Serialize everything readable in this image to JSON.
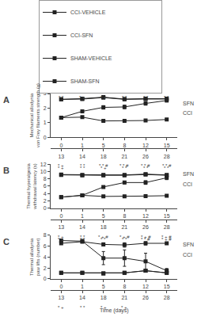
{
  "chart_data": [
    {
      "type": "line",
      "title": "A",
      "ylabel": "Mechanical allodynia\nvon Frey filaments strength (g)",
      "categories": [
        "0",
        "1",
        "5",
        "8",
        "12",
        "15"
      ],
      "categories_secondary": [
        "13",
        "14",
        "18",
        "21",
        "26",
        "28"
      ],
      "ylim": [
        0,
        3.0
      ],
      "yticks": [
        0,
        1,
        2,
        3
      ],
      "grid": false,
      "legend": "upper center",
      "series": [
        {
          "name": "CCI-VEHICLE",
          "color": "#222222",
          "marker": "square",
          "line_style": "solid",
          "values": [
            1.35,
            1.38,
            1.12,
            1.12,
            1.15,
            1.22
          ],
          "errors": [
            0.05,
            0.06,
            0.04,
            0.04,
            0.04,
            0.04
          ]
        },
        {
          "name": "CCI-SFN",
          "color": "#222222",
          "marker": "square",
          "line_style": "solid",
          "values": [
            1.35,
            1.78,
            2.05,
            2.08,
            2.32,
            2.52
          ],
          "errors": [
            0.05,
            0.1,
            0.12,
            0.12,
            0.12,
            0.1
          ]
        },
        {
          "name": "SHAM-VEHICLE",
          "color": "#222222",
          "marker": "square",
          "line_style": "solid",
          "values": [
            2.6,
            2.62,
            2.72,
            2.6,
            2.62,
            2.62
          ],
          "errors": [
            0.04,
            0.04,
            0.04,
            0.04,
            0.04,
            0.04
          ]
        },
        {
          "name": "SHAM-SFN",
          "color": "#222222",
          "marker": "square",
          "line_style": "solid",
          "values": [
            2.6,
            2.65,
            2.75,
            2.62,
            2.65,
            2.65
          ],
          "errors": [
            0.04,
            0.04,
            0.04,
            0.04,
            0.04,
            0.04
          ]
        }
      ],
      "annotations_top": [
        "* *",
        "* +",
        "* +",
        "* *",
        "* *",
        "* *"
      ],
      "annotations_bottom": [
        "* +",
        "* *",
        "* * #",
        "* * #",
        "* * #",
        "* * #"
      ],
      "side_labels": [
        "SFN",
        "CCI"
      ]
    },
    {
      "type": "line",
      "title": "B",
      "ylabel": "Thermal hyperalgesia\nwithdrawal latency (s)",
      "categories": [
        "0",
        "1",
        "5",
        "8",
        "12",
        "15"
      ],
      "categories_secondary": [
        "13",
        "14",
        "18",
        "21",
        "26",
        "28"
      ],
      "ylim": [
        0,
        12
      ],
      "yticks": [
        0,
        2,
        4,
        6,
        8,
        10,
        12
      ],
      "grid": false,
      "series": [
        {
          "name": "CCI-VEHICLE",
          "color": "#222222",
          "marker": "square",
          "line_style": "solid",
          "values": [
            3.0,
            3.5,
            3.2,
            3.2,
            3.3,
            3.4
          ],
          "errors": [
            0.1,
            0.1,
            0.1,
            0.1,
            0.1,
            0.1
          ]
        },
        {
          "name": "CCI-SFN",
          "color": "#222222",
          "marker": "square",
          "line_style": "solid",
          "values": [
            3.0,
            3.5,
            5.8,
            7.0,
            7.0,
            8.3
          ],
          "errors": [
            0.1,
            0.2,
            0.3,
            0.35,
            0.5,
            0.5
          ]
        },
        {
          "name": "SHAM-VEHICLE",
          "color": "#222222",
          "marker": "square",
          "line_style": "solid",
          "values": [
            9.1,
            9.0,
            9.0,
            9.0,
            9.2,
            9.0
          ],
          "errors": [
            0.08,
            0.08,
            0.08,
            0.08,
            0.08,
            0.08
          ]
        },
        {
          "name": "SHAM-SFN",
          "color": "#222222",
          "marker": "square",
          "line_style": "solid",
          "values": [
            9.2,
            9.1,
            9.1,
            9.1,
            9.3,
            9.1
          ],
          "errors": [
            0.08,
            0.08,
            0.08,
            0.08,
            0.08,
            0.08
          ]
        }
      ],
      "annotations_top": [
        "* +",
        "* *",
        "* +",
        "* *",
        "* *",
        "* *"
      ],
      "annotations_bottom": [
        "* +",
        "* *",
        "* + #",
        "* + #",
        "* + #",
        "* + #"
      ],
      "side_labels": [
        "SFN",
        "CCI"
      ]
    },
    {
      "type": "line",
      "title": "C",
      "ylabel": "Thermal allodynia\npaw lifts (number)",
      "xlabel": "Time (days)",
      "categories": [
        "0",
        "1",
        "5",
        "8",
        "12",
        "15"
      ],
      "categories_secondary": [
        "13",
        "14",
        "18",
        "21",
        "26",
        "28"
      ],
      "ylim": [
        0,
        8
      ],
      "yticks": [
        0,
        2,
        4,
        6,
        8
      ],
      "grid": false,
      "series": [
        {
          "name": "CCI-VEHICLE",
          "color": "#222222",
          "marker": "square",
          "line_style": "solid",
          "values": [
            1.1,
            1.1,
            1.0,
            1.1,
            1.5,
            1.1
          ],
          "errors": [
            0.1,
            0.1,
            0.1,
            0.15,
            0.15,
            0.1
          ]
        },
        {
          "name": "CCI-SFN",
          "color": "#222222",
          "marker": "square",
          "line_style": "solid",
          "values": [
            7.0,
            6.9,
            3.8,
            3.8,
            3.2,
            1.5
          ],
          "errors": [
            0.3,
            0.3,
            1.2,
            1.5,
            1.5,
            0.4
          ]
        },
        {
          "name": "SHAM-VEHICLE",
          "color": "#222222",
          "marker": "square",
          "line_style": "solid",
          "values": [
            1.1,
            1.1,
            1.0,
            1.1,
            1.5,
            1.1
          ],
          "errors": [
            0.1,
            0.1,
            0.1,
            0.15,
            0.15,
            0.1
          ]
        },
        {
          "name": "SHAM-SFN",
          "color": "#222222",
          "marker": "square",
          "line_style": "solid",
          "values": [
            6.5,
            6.8,
            6.3,
            6.2,
            6.5,
            6.5
          ],
          "errors": [
            0.2,
            0.2,
            0.3,
            0.4,
            0.3,
            0.2
          ]
        }
      ],
      "annotations_top": [
        "* +",
        "* *",
        "* *",
        "* *",
        "* * #",
        "* + #"
      ],
      "annotations_bottom": [
        "* +",
        "* *",
        "* +",
        "* +",
        null,
        null
      ],
      "side_labels": [
        "SFN",
        "CCI"
      ]
    }
  ]
}
